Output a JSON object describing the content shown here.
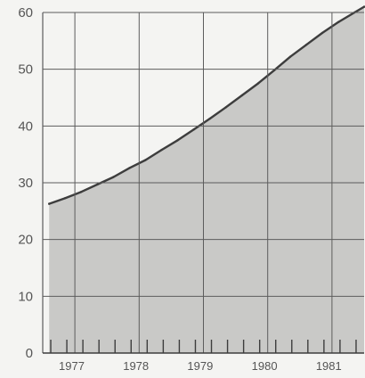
{
  "chart_data": {
    "type": "area",
    "title": "",
    "xlabel": "",
    "ylabel": "",
    "x_tick_labels": [
      "1977",
      "1978",
      "1979",
      "1980",
      "1981"
    ],
    "y_tick_labels": [
      "0",
      "10",
      "20",
      "30",
      "40",
      "50",
      "60"
    ],
    "xlim": [
      1976.9,
      1981.9
    ],
    "ylim": [
      0,
      60
    ],
    "grid": true,
    "legend": "none",
    "series": [
      {
        "x": [
          1977.0,
          1977.25,
          1977.5,
          1977.75,
          1978.0,
          1978.25,
          1978.5,
          1978.75,
          1979.0,
          1979.25,
          1979.5,
          1979.75,
          1980.0,
          1980.25,
          1980.5,
          1980.75,
          1981.0,
          1981.25,
          1981.5,
          1981.75,
          1981.9
        ],
        "y": [
          26.3,
          27.3,
          28.4,
          29.7,
          31.0,
          32.6,
          34.0,
          35.8,
          37.5,
          39.4,
          41.3,
          43.3,
          45.4,
          47.5,
          49.8,
          52.2,
          54.3,
          56.4,
          58.3,
          60.0,
          61.0
        ]
      }
    ],
    "colors": {
      "fill": "#c9c9c7",
      "line": "#3d3d3d",
      "grid": "#5c5c5c",
      "background": "#f4f4f2"
    }
  }
}
